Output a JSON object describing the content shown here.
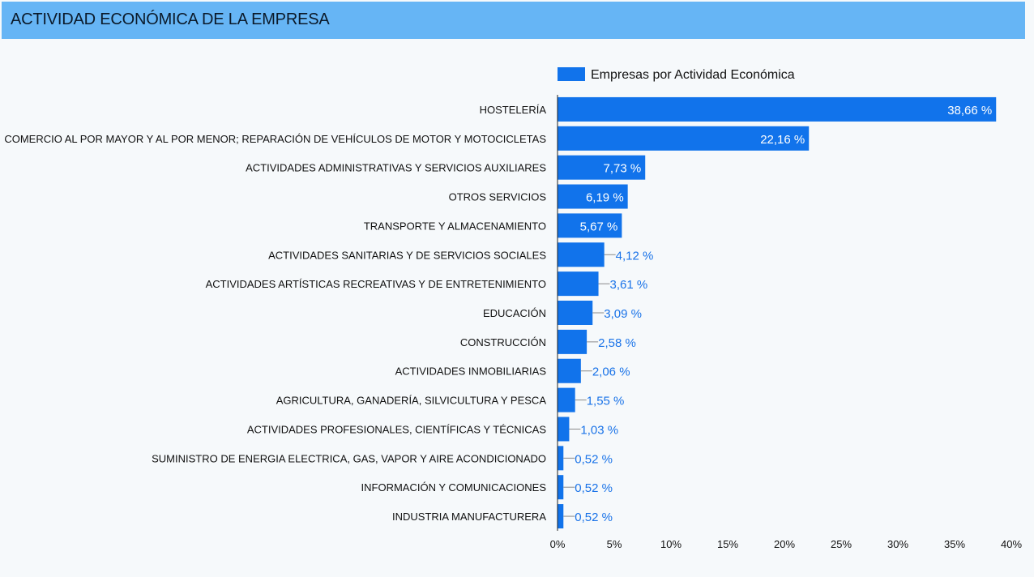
{
  "header": {
    "title": "ACTIVIDAD ECONÓMICA DE LA EMPRESA"
  },
  "colors": {
    "header_bg": "#66b5f5",
    "bar": "#1173eb",
    "outside_label": "#1a73e8"
  },
  "chart_data": {
    "type": "bar",
    "orientation": "horizontal",
    "legend": {
      "position": "top",
      "entries": [
        "Empresas por Actividad Económica"
      ]
    },
    "xlim": [
      0,
      40
    ],
    "x_ticks": [
      "0%",
      "5%",
      "10%",
      "15%",
      "20%",
      "25%",
      "30%",
      "35%",
      "40%"
    ],
    "grid": false,
    "categories": [
      "HOSTELERÍA",
      "COMERCIO AL POR MAYOR Y AL POR MENOR; REPARACIÓN DE VEHÍCULOS DE MOTOR Y MOTOCICLETAS",
      "ACTIVIDADES ADMINISTRATIVAS Y SERVICIOS AUXILIARES",
      "OTROS SERVICIOS",
      "TRANSPORTE Y ALMACENAMIENTO",
      "ACTIVIDADES SANITARIAS Y DE SERVICIOS SOCIALES",
      "ACTIVIDADES ARTÍSTICAS RECREATIVAS Y DE ENTRETENIMIENTO",
      "EDUCACIÓN",
      "CONSTRUCCIÓN",
      "ACTIVIDADES INMOBILIARIAS",
      "AGRICULTURA, GANADERÍA, SILVICULTURA Y PESCA",
      "ACTIVIDADES PROFESIONALES, CIENTÍFICAS Y TÉCNICAS",
      "SUMINISTRO DE ENERGIA ELECTRICA, GAS, VAPOR Y AIRE ACONDICIONADO",
      "INFORMACIÓN Y COMUNICACIONES",
      "INDUSTRIA MANUFACTURERA"
    ],
    "series": [
      {
        "name": "Empresas por Actividad Económica",
        "values": [
          38.66,
          22.16,
          7.73,
          6.19,
          5.67,
          4.12,
          3.61,
          3.09,
          2.58,
          2.06,
          1.55,
          1.03,
          0.52,
          0.52,
          0.52
        ],
        "labels": [
          "38,66 %",
          "22,16 %",
          "7,73 %",
          "6,19 %",
          "5,67 %",
          "4,12 %",
          "3,61 %",
          "3,09 %",
          "2,58 %",
          "2,06 %",
          "1,55 %",
          "1,03 %",
          "0,52 %",
          "0,52 %",
          "0,52 %"
        ]
      }
    ]
  }
}
